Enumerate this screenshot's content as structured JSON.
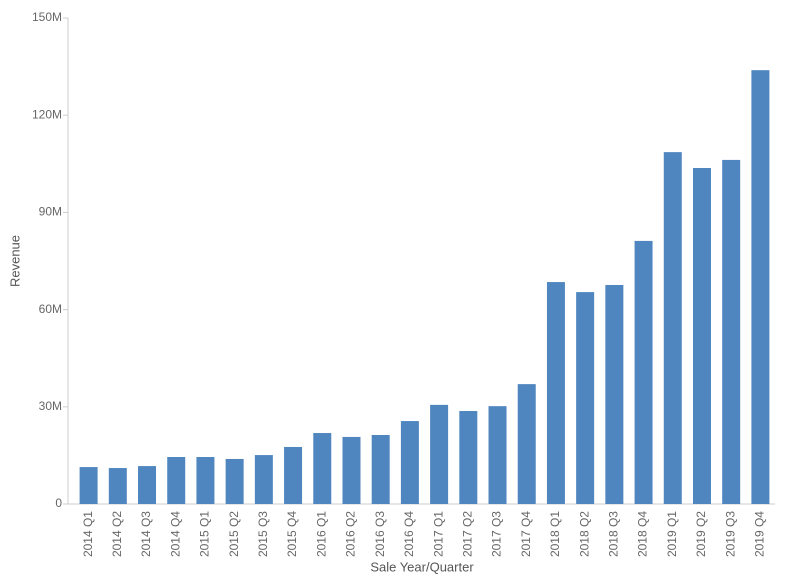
{
  "chart_data": {
    "type": "bar",
    "x_label": "Sale Year/Quarter",
    "y_label": "Revenue",
    "categories": [
      "2014 Q1",
      "2014 Q2",
      "2014 Q3",
      "2014 Q4",
      "2015 Q1",
      "2015 Q2",
      "2015 Q3",
      "2015 Q4",
      "2016 Q1",
      "2016 Q2",
      "2016 Q3",
      "2016 Q4",
      "2017 Q1",
      "2017 Q2",
      "2017 Q3",
      "2017 Q4",
      "2018 Q1",
      "2018 Q2",
      "2018 Q3",
      "2018 Q4",
      "2019 Q1",
      "2019 Q2",
      "2019 Q3",
      "2019 Q4"
    ],
    "values": [
      11400000,
      11100000,
      11700000,
      14500000,
      14500000,
      13900000,
      15100000,
      17600000,
      21900000,
      20700000,
      21300000,
      25600000,
      30600000,
      28700000,
      30200000,
      37000000,
      68500000,
      65400000,
      67600000,
      81200000,
      108600000,
      103700000,
      106200000,
      133900000
    ],
    "color": "#4f86c0",
    "ylim": [
      0,
      150000000
    ],
    "yticks": [
      0,
      {
        "value": 30000000,
        "label": "30M"
      },
      {
        "value": 60000000,
        "label": "60M"
      },
      {
        "value": 90000000,
        "label": "90M"
      },
      {
        "value": 120000000,
        "label": "120M"
      },
      {
        "value": 150000000,
        "label": "150M"
      }
    ],
    "grid": false
  }
}
